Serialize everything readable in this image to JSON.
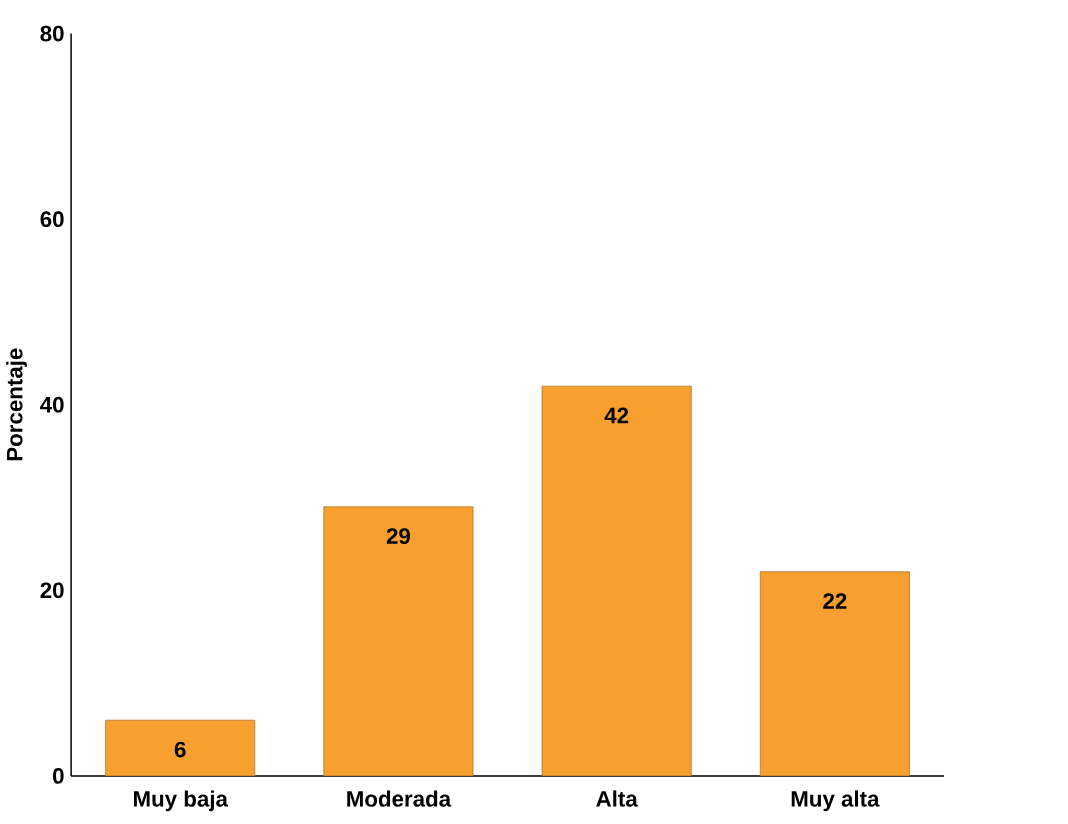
{
  "chart_data": {
    "type": "bar",
    "ylabel": "Porcentaje",
    "categories": [
      "Muy baja",
      "Moderada",
      "Alta",
      "Muy alta"
    ],
    "values": [
      6,
      29,
      42,
      22
    ],
    "color": "#f7a030",
    "ylim": [
      0,
      80
    ],
    "yticks": [
      0,
      20,
      40,
      60,
      80
    ],
    "data_labels": true
  }
}
